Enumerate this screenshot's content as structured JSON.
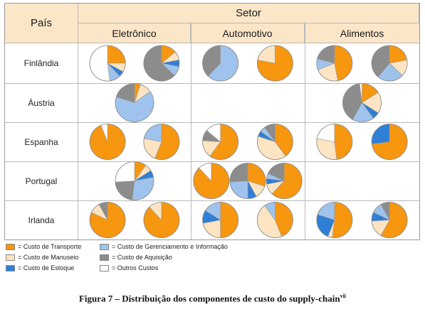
{
  "header": {
    "country_label": "País",
    "sector_label": "Setor",
    "sectors": [
      "Eletrônico",
      "Automotivo",
      "Alimentos"
    ]
  },
  "countries": [
    "Finlândia",
    "Áustria",
    "Espanha",
    "Portugal",
    "Irlanda"
  ],
  "legend": {
    "items": [
      {
        "key": "transporte",
        "label": "= Custo de Transporte",
        "color": "#f7960f"
      },
      {
        "key": "manuseio",
        "label": "= Custo de Manuseio",
        "color": "#fde4c2"
      },
      {
        "key": "estoque",
        "label": "= Custo de Estoque",
        "color": "#2f7fd6"
      },
      {
        "key": "gerenciamento",
        "label": "= Custo de Gerenciamento e Informação",
        "color": "#9fc3ec"
      },
      {
        "key": "aquisicao",
        "label": "= Custo de Aquisição",
        "color": "#8c8c8c"
      },
      {
        "key": "outros",
        "label": "= Outros Custos",
        "color": "#ffffff"
      }
    ]
  },
  "caption": {
    "text": "Figura  7 – Distribuição  dos componentes  de custo do supply-chain",
    "superscript": "vii"
  },
  "chart_data": {
    "type": "pie",
    "categories": [
      "Custo de Transporte",
      "Custo de Manuseio",
      "Custo de Estoque",
      "Custo de Gerenciamento e Informação",
      "Custo de Aquisição",
      "Outros Custos"
    ],
    "cells": [
      {
        "country": "Finlândia",
        "sector": "Eletrônico",
        "pies": [
          {
            "values": [
              25,
              8,
              5,
              10,
              0,
              52
            ]
          },
          {
            "values": [
              14,
              8,
              6,
              9,
              63,
              0
            ]
          }
        ]
      },
      {
        "country": "Finlândia",
        "sector": "Automotivo",
        "pies": [
          {
            "values": [
              0,
              0,
              0,
              62,
              38,
              0
            ]
          },
          {
            "values": [
              78,
              22,
              0,
              0,
              0,
              0
            ]
          }
        ]
      },
      {
        "country": "Finlândia",
        "sector": "Alimentos",
        "pies": [
          {
            "values": [
              47,
              22,
              0,
              10,
              21,
              0
            ]
          },
          {
            "values": [
              22,
              15,
              0,
              24,
              39,
              0
            ]
          }
        ]
      },
      {
        "country": "Áustria",
        "sector": "Eletrônico",
        "pies": [
          {
            "values": [
              5,
              10,
              0,
              65,
              20,
              0
            ]
          }
        ]
      },
      {
        "country": "Áustria",
        "sector": "Alimentos",
        "pies": [
          {
            "values": [
              16,
              18,
              6,
              18,
              40,
              2
            ]
          }
        ]
      },
      {
        "country": "Espanha",
        "sector": "Eletrônico",
        "pies": [
          {
            "values": [
              94,
              0,
              0,
              0,
              0,
              6
            ]
          },
          {
            "values": [
              56,
              22,
              0,
              22,
              0,
              0
            ]
          }
        ]
      },
      {
        "country": "Espanha",
        "sector": "Automotivo",
        "pies": [
          {
            "values": [
              60,
              16,
              0,
              0,
              10,
              14
            ]
          },
          {
            "values": [
              40,
              40,
              5,
              5,
              10,
              0
            ]
          }
        ]
      },
      {
        "country": "Espanha",
        "sector": "Alimentos",
        "pies": [
          {
            "values": [
              48,
              30,
              0,
              0,
              0,
              22
            ]
          },
          {
            "values": [
              73,
              0,
              27,
              0,
              0,
              0
            ]
          }
        ]
      },
      {
        "country": "Portugal",
        "sector": "Eletrônico",
        "pies": [
          {
            "values": [
              10,
              6,
              6,
              30,
              22,
              26
            ]
          }
        ]
      },
      {
        "country": "Portugal",
        "sector": "Automotivo",
        "pies": [
          {
            "values": [
              88,
              0,
              0,
              0,
              0,
              12
            ]
          },
          {
            "values": [
              30,
              12,
              8,
              24,
              26,
              0
            ]
          },
          {
            "values": [
              62,
              10,
              5,
              5,
              18,
              0
            ]
          }
        ]
      },
      {
        "country": "Irlanda",
        "sector": "Eletrônico",
        "pies": [
          {
            "values": [
              82,
              10,
              0,
              0,
              8,
              0
            ]
          },
          {
            "values": [
              88,
              12,
              0,
              0,
              0,
              0
            ]
          }
        ]
      },
      {
        "country": "Irlanda",
        "sector": "Automotivo",
        "pies": [
          {
            "values": [
              50,
              22,
              12,
              16,
              0,
              0
            ]
          },
          {
            "values": [
              44,
              46,
              0,
              10,
              0,
              0
            ]
          }
        ]
      },
      {
        "country": "Irlanda",
        "sector": "Alimentos",
        "pies": [
          {
            "values": [
              52,
              4,
              24,
              20,
              0,
              0
            ]
          },
          {
            "values": [
              58,
              16,
              8,
              10,
              8,
              0
            ]
          }
        ]
      }
    ]
  }
}
